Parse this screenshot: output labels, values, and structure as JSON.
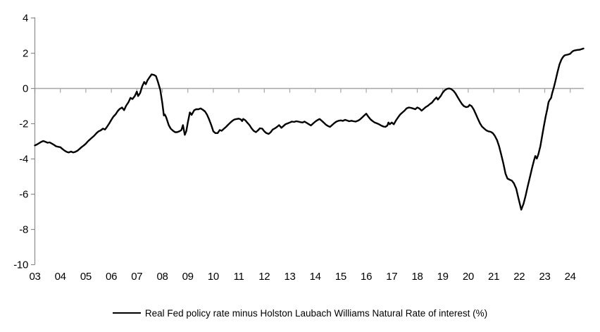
{
  "chart_data": {
    "type": "line",
    "title": "",
    "xlabel": "",
    "ylabel": "",
    "xlim": [
      2003,
      2024.6
    ],
    "ylim": [
      -10,
      4
    ],
    "grid": false,
    "zero_line": true,
    "legend_position": "bottom-center",
    "x_ticks": [
      "03",
      "04",
      "05",
      "06",
      "07",
      "08",
      "09",
      "10",
      "11",
      "12",
      "13",
      "14",
      "15",
      "16",
      "17",
      "18",
      "19",
      "20",
      "21",
      "22",
      "23",
      "24"
    ],
    "y_ticks": [
      "4",
      "2",
      "0",
      "-2",
      "-4",
      "-6",
      "-8",
      "-10"
    ],
    "colors": {
      "axis": "#8c8c8c",
      "zero_line": "#a6a6a6",
      "series": "#000000",
      "text": "#000000",
      "background": "#ffffff"
    },
    "series": [
      {
        "name": "Real Fed policy rate minus Holston Laubach Williams Natural Rate of interest (%)",
        "color": "#000000",
        "points": [
          [
            2003.0,
            -3.25
          ],
          [
            2003.08,
            -3.2
          ],
          [
            2003.17,
            -3.12
          ],
          [
            2003.25,
            -3.05
          ],
          [
            2003.33,
            -3.0
          ],
          [
            2003.42,
            -3.05
          ],
          [
            2003.5,
            -3.1
          ],
          [
            2003.58,
            -3.08
          ],
          [
            2003.67,
            -3.15
          ],
          [
            2003.75,
            -3.22
          ],
          [
            2003.83,
            -3.3
          ],
          [
            2003.92,
            -3.33
          ],
          [
            2004.0,
            -3.35
          ],
          [
            2004.08,
            -3.45
          ],
          [
            2004.17,
            -3.55
          ],
          [
            2004.25,
            -3.62
          ],
          [
            2004.33,
            -3.65
          ],
          [
            2004.42,
            -3.6
          ],
          [
            2004.5,
            -3.65
          ],
          [
            2004.58,
            -3.62
          ],
          [
            2004.67,
            -3.55
          ],
          [
            2004.75,
            -3.45
          ],
          [
            2004.83,
            -3.35
          ],
          [
            2004.92,
            -3.25
          ],
          [
            2005.0,
            -3.15
          ],
          [
            2005.08,
            -3.02
          ],
          [
            2005.17,
            -2.9
          ],
          [
            2005.25,
            -2.8
          ],
          [
            2005.33,
            -2.7
          ],
          [
            2005.42,
            -2.55
          ],
          [
            2005.5,
            -2.45
          ],
          [
            2005.58,
            -2.4
          ],
          [
            2005.67,
            -2.3
          ],
          [
            2005.75,
            -2.35
          ],
          [
            2005.83,
            -2.2
          ],
          [
            2005.92,
            -2.0
          ],
          [
            2006.0,
            -1.8
          ],
          [
            2006.08,
            -1.62
          ],
          [
            2006.17,
            -1.48
          ],
          [
            2006.25,
            -1.3
          ],
          [
            2006.33,
            -1.18
          ],
          [
            2006.42,
            -1.1
          ],
          [
            2006.5,
            -1.25
          ],
          [
            2006.58,
            -1.0
          ],
          [
            2006.67,
            -0.8
          ],
          [
            2006.75,
            -0.55
          ],
          [
            2006.83,
            -0.62
          ],
          [
            2006.92,
            -0.45
          ],
          [
            2007.0,
            -0.2
          ],
          [
            2007.05,
            -0.45
          ],
          [
            2007.13,
            -0.28
          ],
          [
            2007.21,
            0.1
          ],
          [
            2007.29,
            0.35
          ],
          [
            2007.35,
            0.22
          ],
          [
            2007.42,
            0.45
          ],
          [
            2007.5,
            0.62
          ],
          [
            2007.58,
            0.78
          ],
          [
            2007.67,
            0.75
          ],
          [
            2007.75,
            0.68
          ],
          [
            2007.83,
            0.35
          ],
          [
            2007.92,
            -0.1
          ],
          [
            2008.0,
            -0.85
          ],
          [
            2008.06,
            -1.55
          ],
          [
            2008.1,
            -1.5
          ],
          [
            2008.15,
            -1.65
          ],
          [
            2008.25,
            -2.1
          ],
          [
            2008.33,
            -2.3
          ],
          [
            2008.42,
            -2.42
          ],
          [
            2008.5,
            -2.5
          ],
          [
            2008.58,
            -2.5
          ],
          [
            2008.67,
            -2.45
          ],
          [
            2008.75,
            -2.38
          ],
          [
            2008.81,
            -2.1
          ],
          [
            2008.88,
            -2.65
          ],
          [
            2008.94,
            -2.45
          ],
          [
            2009.0,
            -1.95
          ],
          [
            2009.08,
            -1.38
          ],
          [
            2009.15,
            -1.52
          ],
          [
            2009.25,
            -1.25
          ],
          [
            2009.33,
            -1.2
          ],
          [
            2009.42,
            -1.2
          ],
          [
            2009.5,
            -1.15
          ],
          [
            2009.58,
            -1.22
          ],
          [
            2009.67,
            -1.32
          ],
          [
            2009.75,
            -1.5
          ],
          [
            2009.83,
            -1.75
          ],
          [
            2009.92,
            -2.1
          ],
          [
            2010.0,
            -2.45
          ],
          [
            2010.08,
            -2.55
          ],
          [
            2010.17,
            -2.55
          ],
          [
            2010.25,
            -2.38
          ],
          [
            2010.33,
            -2.42
          ],
          [
            2010.42,
            -2.3
          ],
          [
            2010.5,
            -2.2
          ],
          [
            2010.58,
            -2.08
          ],
          [
            2010.67,
            -1.95
          ],
          [
            2010.75,
            -1.85
          ],
          [
            2010.83,
            -1.78
          ],
          [
            2010.92,
            -1.75
          ],
          [
            2011.0,
            -1.73
          ],
          [
            2011.08,
            -1.78
          ],
          [
            2011.13,
            -1.87
          ],
          [
            2011.17,
            -1.75
          ],
          [
            2011.25,
            -1.82
          ],
          [
            2011.33,
            -1.95
          ],
          [
            2011.42,
            -2.1
          ],
          [
            2011.5,
            -2.28
          ],
          [
            2011.58,
            -2.42
          ],
          [
            2011.67,
            -2.5
          ],
          [
            2011.75,
            -2.4
          ],
          [
            2011.83,
            -2.28
          ],
          [
            2011.92,
            -2.3
          ],
          [
            2012.0,
            -2.45
          ],
          [
            2012.08,
            -2.55
          ],
          [
            2012.17,
            -2.6
          ],
          [
            2012.25,
            -2.5
          ],
          [
            2012.33,
            -2.35
          ],
          [
            2012.42,
            -2.28
          ],
          [
            2012.5,
            -2.2
          ],
          [
            2012.58,
            -2.1
          ],
          [
            2012.67,
            -2.25
          ],
          [
            2012.75,
            -2.15
          ],
          [
            2012.83,
            -2.05
          ],
          [
            2012.92,
            -2.0
          ],
          [
            2013.0,
            -1.95
          ],
          [
            2013.08,
            -1.9
          ],
          [
            2013.17,
            -1.92
          ],
          [
            2013.25,
            -1.88
          ],
          [
            2013.33,
            -1.9
          ],
          [
            2013.42,
            -1.93
          ],
          [
            2013.5,
            -1.95
          ],
          [
            2013.58,
            -1.9
          ],
          [
            2013.67,
            -1.98
          ],
          [
            2013.75,
            -2.05
          ],
          [
            2013.83,
            -2.12
          ],
          [
            2013.92,
            -2.0
          ],
          [
            2014.0,
            -1.9
          ],
          [
            2014.08,
            -1.82
          ],
          [
            2014.17,
            -1.75
          ],
          [
            2014.25,
            -1.85
          ],
          [
            2014.33,
            -1.95
          ],
          [
            2014.42,
            -2.08
          ],
          [
            2014.5,
            -2.15
          ],
          [
            2014.58,
            -2.2
          ],
          [
            2014.67,
            -2.08
          ],
          [
            2014.75,
            -1.98
          ],
          [
            2014.83,
            -1.9
          ],
          [
            2014.92,
            -1.85
          ],
          [
            2015.0,
            -1.83
          ],
          [
            2015.08,
            -1.86
          ],
          [
            2015.17,
            -1.8
          ],
          [
            2015.25,
            -1.84
          ],
          [
            2015.33,
            -1.88
          ],
          [
            2015.42,
            -1.85
          ],
          [
            2015.5,
            -1.88
          ],
          [
            2015.58,
            -1.9
          ],
          [
            2015.67,
            -1.85
          ],
          [
            2015.75,
            -1.78
          ],
          [
            2015.83,
            -1.68
          ],
          [
            2015.92,
            -1.55
          ],
          [
            2016.0,
            -1.45
          ],
          [
            2016.08,
            -1.62
          ],
          [
            2016.17,
            -1.78
          ],
          [
            2016.25,
            -1.87
          ],
          [
            2016.33,
            -1.95
          ],
          [
            2016.42,
            -2.0
          ],
          [
            2016.5,
            -2.05
          ],
          [
            2016.58,
            -2.12
          ],
          [
            2016.67,
            -2.18
          ],
          [
            2016.75,
            -2.2
          ],
          [
            2016.83,
            -2.12
          ],
          [
            2016.87,
            -1.95
          ],
          [
            2016.92,
            -2.05
          ],
          [
            2017.0,
            -1.95
          ],
          [
            2017.08,
            -2.05
          ],
          [
            2017.17,
            -1.82
          ],
          [
            2017.25,
            -1.65
          ],
          [
            2017.33,
            -1.5
          ],
          [
            2017.42,
            -1.38
          ],
          [
            2017.5,
            -1.28
          ],
          [
            2017.58,
            -1.15
          ],
          [
            2017.67,
            -1.1
          ],
          [
            2017.75,
            -1.12
          ],
          [
            2017.83,
            -1.15
          ],
          [
            2017.92,
            -1.2
          ],
          [
            2018.0,
            -1.1
          ],
          [
            2018.08,
            -1.15
          ],
          [
            2018.17,
            -1.28
          ],
          [
            2018.25,
            -1.18
          ],
          [
            2018.33,
            -1.08
          ],
          [
            2018.42,
            -1.0
          ],
          [
            2018.5,
            -0.9
          ],
          [
            2018.58,
            -0.82
          ],
          [
            2018.67,
            -0.65
          ],
          [
            2018.75,
            -0.53
          ],
          [
            2018.81,
            -0.65
          ],
          [
            2018.92,
            -0.45
          ],
          [
            2019.0,
            -0.25
          ],
          [
            2019.08,
            -0.12
          ],
          [
            2019.17,
            -0.04
          ],
          [
            2019.25,
            -0.02
          ],
          [
            2019.33,
            -0.05
          ],
          [
            2019.42,
            -0.15
          ],
          [
            2019.5,
            -0.3
          ],
          [
            2019.58,
            -0.5
          ],
          [
            2019.67,
            -0.72
          ],
          [
            2019.75,
            -0.9
          ],
          [
            2019.83,
            -1.02
          ],
          [
            2019.92,
            -1.08
          ],
          [
            2020.0,
            -1.05
          ],
          [
            2020.05,
            -0.95
          ],
          [
            2020.13,
            -1.02
          ],
          [
            2020.21,
            -1.2
          ],
          [
            2020.29,
            -1.45
          ],
          [
            2020.38,
            -1.75
          ],
          [
            2020.46,
            -2.0
          ],
          [
            2020.54,
            -2.18
          ],
          [
            2020.63,
            -2.3
          ],
          [
            2020.71,
            -2.4
          ],
          [
            2020.79,
            -2.45
          ],
          [
            2020.88,
            -2.48
          ],
          [
            2020.96,
            -2.55
          ],
          [
            2021.04,
            -2.7
          ],
          [
            2021.13,
            -2.95
          ],
          [
            2021.21,
            -3.3
          ],
          [
            2021.29,
            -3.75
          ],
          [
            2021.38,
            -4.3
          ],
          [
            2021.46,
            -4.85
          ],
          [
            2021.54,
            -5.13
          ],
          [
            2021.63,
            -5.2
          ],
          [
            2021.71,
            -5.25
          ],
          [
            2021.79,
            -5.4
          ],
          [
            2021.88,
            -5.7
          ],
          [
            2021.96,
            -6.2
          ],
          [
            2022.08,
            -6.9
          ],
          [
            2022.17,
            -6.55
          ],
          [
            2022.25,
            -6.1
          ],
          [
            2022.33,
            -5.6
          ],
          [
            2022.42,
            -5.05
          ],
          [
            2022.5,
            -4.55
          ],
          [
            2022.58,
            -4.1
          ],
          [
            2022.63,
            -3.85
          ],
          [
            2022.69,
            -4.0
          ],
          [
            2022.75,
            -3.75
          ],
          [
            2022.83,
            -3.3
          ],
          [
            2022.9,
            -2.7
          ],
          [
            2022.96,
            -2.2
          ],
          [
            2023.0,
            -1.9
          ],
          [
            2023.04,
            -1.6
          ],
          [
            2023.1,
            -1.2
          ],
          [
            2023.15,
            -0.8
          ],
          [
            2023.19,
            -0.68
          ],
          [
            2023.25,
            -0.55
          ],
          [
            2023.29,
            -0.3
          ],
          [
            2023.35,
            0.0
          ],
          [
            2023.42,
            0.4
          ],
          [
            2023.5,
            0.9
          ],
          [
            2023.58,
            1.35
          ],
          [
            2023.65,
            1.6
          ],
          [
            2023.71,
            1.75
          ],
          [
            2023.77,
            1.85
          ],
          [
            2023.83,
            1.88
          ],
          [
            2023.9,
            1.9
          ],
          [
            2023.96,
            1.93
          ],
          [
            2024.0,
            1.95
          ],
          [
            2024.06,
            2.05
          ],
          [
            2024.13,
            2.12
          ],
          [
            2024.21,
            2.15
          ],
          [
            2024.29,
            2.17
          ],
          [
            2024.38,
            2.18
          ],
          [
            2024.46,
            2.22
          ],
          [
            2024.52,
            2.25
          ]
        ]
      }
    ]
  },
  "legend": {
    "label": "Real Fed policy rate minus Holston Laubach Williams Natural Rate of interest (%)"
  }
}
